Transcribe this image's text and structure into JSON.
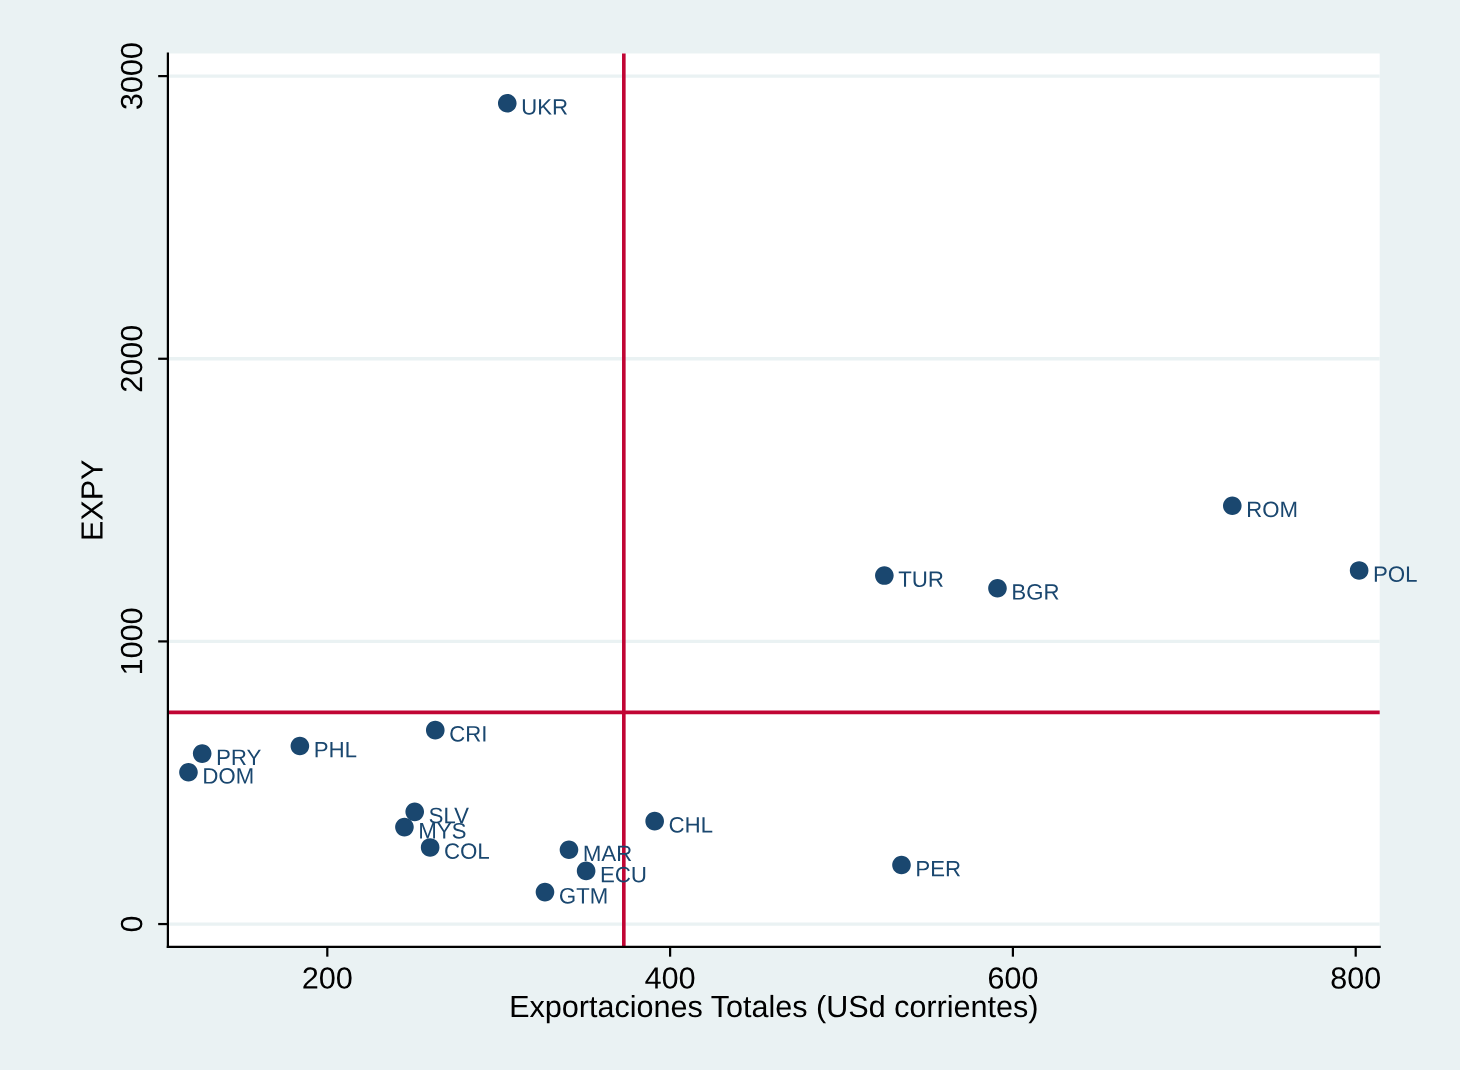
{
  "chart_data": {
    "type": "scatter",
    "xlabel": "Exportaciones Totales (USd corrientes)",
    "ylabel": "EXPY",
    "series": [
      {
        "color": "#1a476f",
        "x": [
          305,
          728,
          802,
          525,
          591,
          263,
          127,
          184,
          119,
          251,
          245,
          260,
          341,
          351,
          327,
          391,
          535
        ],
        "values": [
          2904,
          1480,
          1251,
          1233,
          1188,
          686,
          603,
          630,
          537,
          397,
          343,
          271,
          263,
          188,
          113,
          364,
          209
        ]
      }
    ],
    "annotations": [
      {
        "text": "UKR",
        "x": 305,
        "y": 2904
      },
      {
        "text": "ROM",
        "x": 728,
        "y": 1480
      },
      {
        "text": "POL",
        "x": 802,
        "y": 1251
      },
      {
        "text": "TUR",
        "x": 525,
        "y": 1233
      },
      {
        "text": "BGR",
        "x": 591,
        "y": 1188
      },
      {
        "text": "CRI",
        "x": 263,
        "y": 686
      },
      {
        "text": "PRY",
        "x": 127,
        "y": 603
      },
      {
        "text": "PHL",
        "x": 184,
        "y": 630
      },
      {
        "text": "DOM",
        "x": 119,
        "y": 537
      },
      {
        "text": "SLV",
        "x": 251,
        "y": 397
      },
      {
        "text": "MYS",
        "x": 245,
        "y": 343
      },
      {
        "text": "COL",
        "x": 260,
        "y": 271
      },
      {
        "text": "MAR",
        "x": 341,
        "y": 263
      },
      {
        "text": "ECU",
        "x": 351,
        "y": 188
      },
      {
        "text": "GTM",
        "x": 327,
        "y": 113
      },
      {
        "text": "CHL",
        "x": 391,
        "y": 364
      },
      {
        "text": "PER",
        "x": 535,
        "y": 209
      }
    ],
    "ref_lines": [
      {
        "axis": "x",
        "value": 373,
        "color": "#c10534"
      },
      {
        "axis": "y",
        "value": 749,
        "color": "#c10534"
      }
    ],
    "xlim": [
      107,
      814
    ],
    "ylim": [
      -81,
      3080
    ],
    "xticks": [
      200,
      400,
      600,
      800
    ],
    "yticks": [
      0,
      1000,
      2000,
      3000
    ],
    "grid": "y",
    "marker": "circle",
    "legend": false
  }
}
